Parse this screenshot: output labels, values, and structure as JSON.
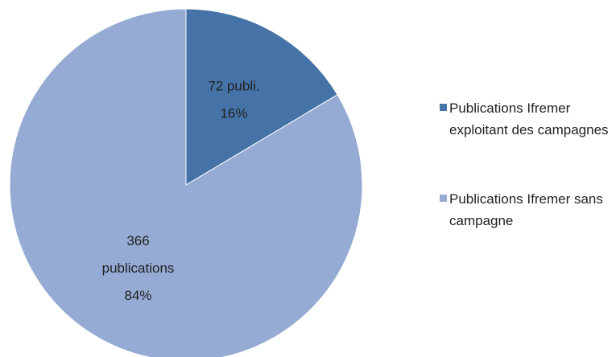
{
  "chart_data": {
    "type": "pie",
    "categories": [
      "Publications Ifremer exploitant des campagnes",
      "Publications Ifremer sans campagne"
    ],
    "values": [
      72,
      366
    ],
    "value_labels": [
      [
        "72 publi.",
        "16%"
      ],
      [
        "366",
        "publications",
        "84%"
      ]
    ],
    "colors": [
      "#4572a7",
      "#96abd4"
    ],
    "legend": "right"
  }
}
